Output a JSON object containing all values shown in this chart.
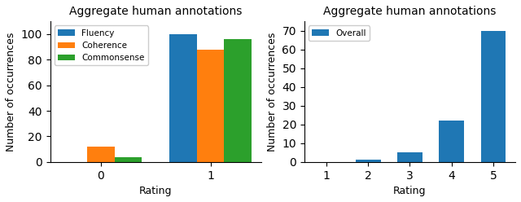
{
  "left": {
    "title": "Aggregate human annotations",
    "xlabel": "Rating",
    "ylabel": "Number of occurrences",
    "categories": [
      0,
      1
    ],
    "series": [
      {
        "label": "Fluency",
        "color": "#1f77b4",
        "values": [
          0,
          100
        ]
      },
      {
        "label": "Coherence",
        "color": "#ff7f0e",
        "values": [
          12,
          88
        ]
      },
      {
        "label": "Commonsense",
        "color": "#2ca02c",
        "values": [
          4,
          96
        ]
      }
    ],
    "ylim": [
      0,
      110
    ],
    "yticks": [
      0,
      20,
      40,
      60,
      80,
      100
    ],
    "bar_width": 0.25
  },
  "right": {
    "title": "Aggregate human annotations",
    "xlabel": "Rating",
    "ylabel": "Number of occurrences",
    "categories": [
      1,
      2,
      3,
      4,
      5
    ],
    "series": [
      {
        "label": "Overall",
        "color": "#1f77b4",
        "values": [
          0,
          1,
          5,
          22,
          70
        ]
      }
    ],
    "ylim": [
      0,
      75
    ],
    "yticks": [
      0,
      10,
      20,
      30,
      40,
      50,
      60,
      70
    ],
    "bar_width": 0.6
  }
}
